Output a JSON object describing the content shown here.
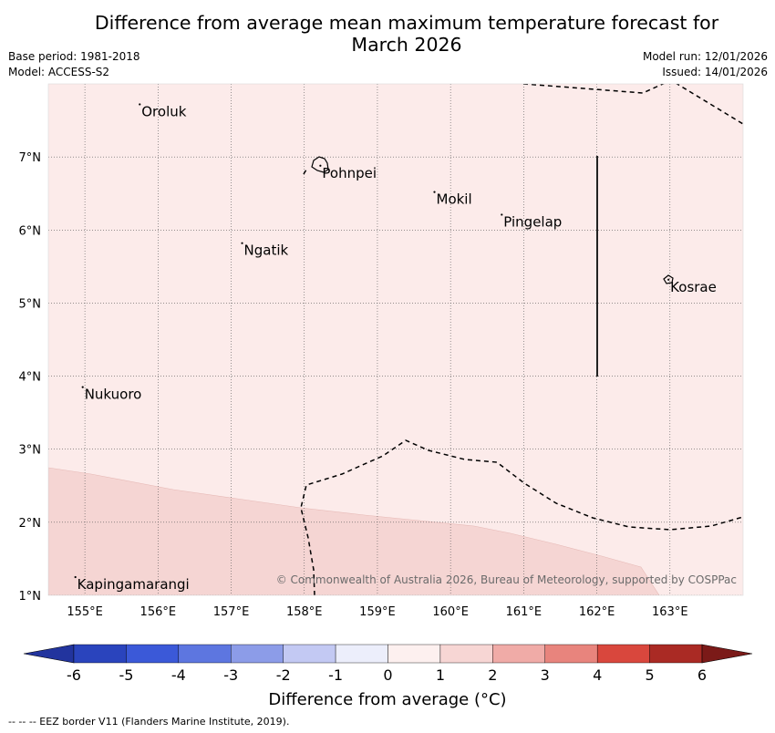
{
  "title": {
    "line1": "Difference from average mean maximum temperature forecast for",
    "line2": "March 2026"
  },
  "meta": {
    "base_period": "Base period: 1981-2018",
    "model": "Model: ACCESS-S2",
    "model_run": "Model run: 12/01/2026",
    "issued": "Issued: 14/01/2026"
  },
  "map": {
    "lon_range": [
      154.5,
      164.0
    ],
    "lat_range": [
      1.0,
      8.0
    ],
    "lon_ticks": [
      "155°E",
      "156°E",
      "157°E",
      "158°E",
      "159°E",
      "160°E",
      "161°E",
      "162°E",
      "163°E"
    ],
    "lat_ticks": [
      "1°N",
      "2°N",
      "3°N",
      "4°N",
      "5°N",
      "6°N",
      "7°N"
    ],
    "background_category": "0 to 1",
    "warmer_zone_category": "1 to 2",
    "places": [
      {
        "name": "Oroluk",
        "lon": 155.75,
        "lat": 7.72
      },
      {
        "name": "Pohnpei",
        "lon": 158.22,
        "lat": 6.88
      },
      {
        "name": "Mokil",
        "lon": 159.78,
        "lat": 6.52
      },
      {
        "name": "Pingelap",
        "lon": 160.7,
        "lat": 6.21
      },
      {
        "name": "Ngatik",
        "lon": 157.15,
        "lat": 5.82
      },
      {
        "name": "Kosrae",
        "lon": 162.98,
        "lat": 5.32
      },
      {
        "name": "Nukuoro",
        "lon": 154.97,
        "lat": 3.85
      },
      {
        "name": "Kapingamarangi",
        "lon": 154.87,
        "lat": 1.25
      }
    ],
    "copyright": "© Commonwealth of Australia 2026, Bureau of Meteorology, supported by COSPPac"
  },
  "colorbar": {
    "title": "Difference from average (°C)",
    "ticks": [
      "-6",
      "-5",
      "-4",
      "-3",
      "-2",
      "-1",
      "0",
      "1",
      "2",
      "3",
      "4",
      "5",
      "6"
    ],
    "colors": [
      "#22349e",
      "#2a44bd",
      "#3b59d8",
      "#5d76e0",
      "#8c9ce8",
      "#c3c9f3",
      "#eceefb",
      "#fdf0ef",
      "#f7d6d4",
      "#f0aba7",
      "#e8847d",
      "#d9473d",
      "#aa2a24",
      "#7b1a18"
    ]
  },
  "footer": "--  --  -- EEZ border V11 (Flanders Marine Institute, 2019)."
}
